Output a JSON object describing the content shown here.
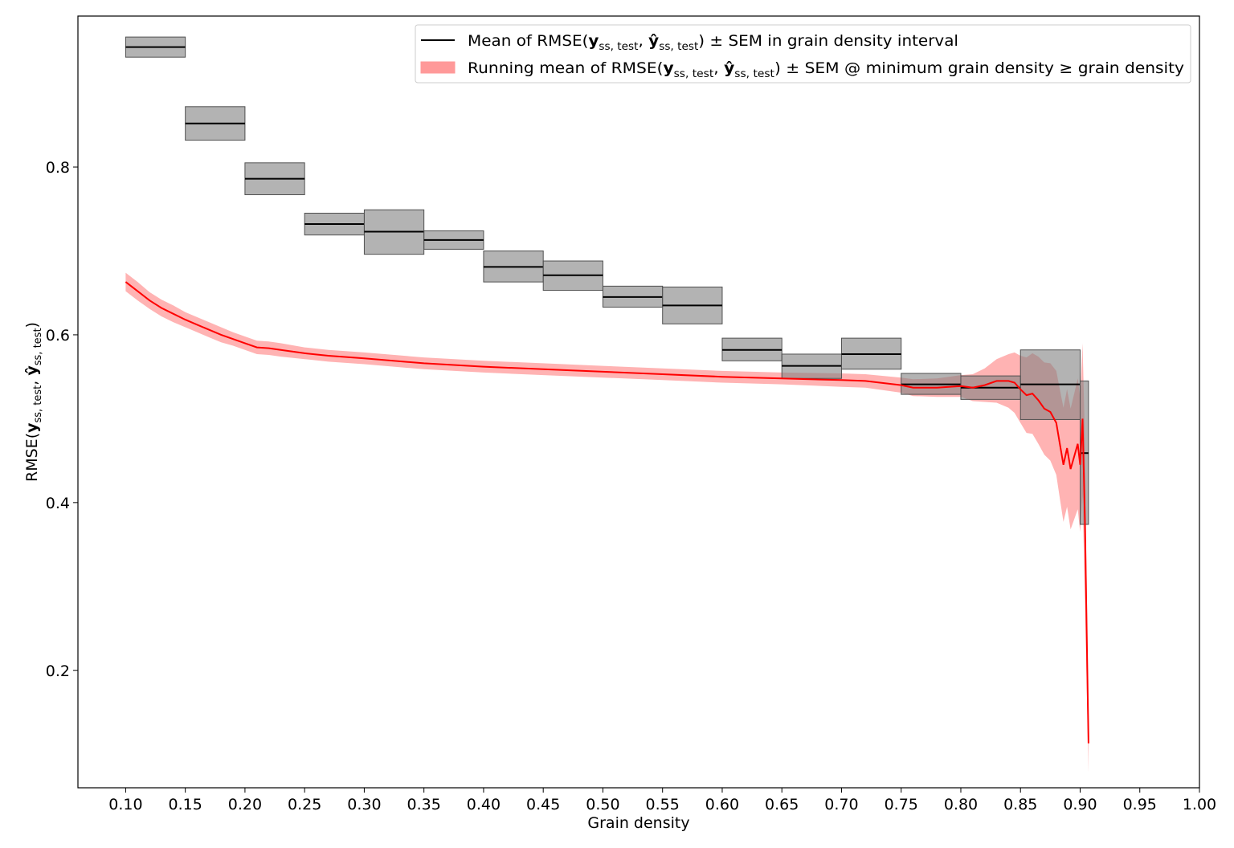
{
  "chart_data": {
    "type": "line",
    "xlabel": "Grain density",
    "ylabel": {
      "prefix": "RMSE(",
      "y": "y",
      "sub": "ss, test",
      "sep": ", ",
      "yhat": "ŷ",
      "suffix": ")"
    },
    "xlim": [
      0.06,
      1.0
    ],
    "ylim": [
      0.06,
      0.98
    ],
    "x_ticks": [
      0.1,
      0.15,
      0.2,
      0.25,
      0.3,
      0.35,
      0.4,
      0.45,
      0.5,
      0.55,
      0.6,
      0.65,
      0.7,
      0.75,
      0.8,
      0.85,
      0.9,
      0.95,
      1.0
    ],
    "x_tick_labels": [
      "0.10",
      "0.15",
      "0.20",
      "0.25",
      "0.30",
      "0.35",
      "0.40",
      "0.45",
      "0.50",
      "0.55",
      "0.60",
      "0.65",
      "0.70",
      "0.75",
      "0.80",
      "0.85",
      "0.90",
      "0.95",
      "1.00"
    ],
    "y_ticks": [
      0.2,
      0.4,
      0.6,
      0.8
    ],
    "y_tick_labels": [
      "0.2",
      "0.4",
      "0.6",
      "0.8"
    ],
    "grid": false,
    "legend_position": "top-right",
    "legend": [
      {
        "kind": "line",
        "color": "#000000",
        "text_before": "Mean of RMSE(",
        "y": "y",
        "sub": "ss, test",
        "sep": ", ",
        "yhat": "ŷ",
        "text_after": ") ± SEM in grain density interval"
      },
      {
        "kind": "patch",
        "color": "#ff9999",
        "text_before": "Running mean of RMSE(",
        "y": "y",
        "sub": "ss, test",
        "sep": ", ",
        "yhat": "ŷ",
        "text_after": ") ± SEM @ minimum grain density  ≥  grain density"
      }
    ],
    "interval_bins": [
      {
        "x0": 0.1,
        "x1": 0.15,
        "mean": 0.943,
        "lo": 0.931,
        "hi": 0.955
      },
      {
        "x0": 0.15,
        "x1": 0.2,
        "mean": 0.852,
        "lo": 0.832,
        "hi": 0.872
      },
      {
        "x0": 0.2,
        "x1": 0.25,
        "mean": 0.786,
        "lo": 0.767,
        "hi": 0.805
      },
      {
        "x0": 0.25,
        "x1": 0.3,
        "mean": 0.732,
        "lo": 0.719,
        "hi": 0.745
      },
      {
        "x0": 0.3,
        "x1": 0.35,
        "mean": 0.723,
        "lo": 0.696,
        "hi": 0.749
      },
      {
        "x0": 0.35,
        "x1": 0.4,
        "mean": 0.713,
        "lo": 0.702,
        "hi": 0.724
      },
      {
        "x0": 0.4,
        "x1": 0.45,
        "mean": 0.681,
        "lo": 0.663,
        "hi": 0.7
      },
      {
        "x0": 0.45,
        "x1": 0.5,
        "mean": 0.671,
        "lo": 0.653,
        "hi": 0.688
      },
      {
        "x0": 0.5,
        "x1": 0.55,
        "mean": 0.645,
        "lo": 0.633,
        "hi": 0.658
      },
      {
        "x0": 0.55,
        "x1": 0.6,
        "mean": 0.635,
        "lo": 0.613,
        "hi": 0.657
      },
      {
        "x0": 0.6,
        "x1": 0.65,
        "mean": 0.582,
        "lo": 0.569,
        "hi": 0.596
      },
      {
        "x0": 0.65,
        "x1": 0.7,
        "mean": 0.563,
        "lo": 0.548,
        "hi": 0.577
      },
      {
        "x0": 0.7,
        "x1": 0.75,
        "mean": 0.577,
        "lo": 0.559,
        "hi": 0.596
      },
      {
        "x0": 0.75,
        "x1": 0.8,
        "mean": 0.541,
        "lo": 0.529,
        "hi": 0.554
      },
      {
        "x0": 0.8,
        "x1": 0.85,
        "mean": 0.537,
        "lo": 0.523,
        "hi": 0.551
      },
      {
        "x0": 0.85,
        "x1": 0.9,
        "mean": 0.541,
        "lo": 0.499,
        "hi": 0.582
      },
      {
        "x0": 0.9,
        "x1": 0.907,
        "mean": 0.459,
        "lo": 0.374,
        "hi": 0.545
      }
    ],
    "running_mean": {
      "x": [
        0.1,
        0.11,
        0.12,
        0.13,
        0.14,
        0.15,
        0.16,
        0.17,
        0.18,
        0.19,
        0.2,
        0.21,
        0.22,
        0.23,
        0.25,
        0.27,
        0.3,
        0.35,
        0.4,
        0.45,
        0.5,
        0.55,
        0.6,
        0.65,
        0.7,
        0.72,
        0.75,
        0.76,
        0.78,
        0.8,
        0.81,
        0.82,
        0.83,
        0.84,
        0.845,
        0.85,
        0.855,
        0.86,
        0.865,
        0.87,
        0.875,
        0.88,
        0.883,
        0.886,
        0.889,
        0.892,
        0.895,
        0.898,
        0.9,
        0.902,
        0.904,
        0.906,
        0.907
      ],
      "mean": [
        0.663,
        0.652,
        0.641,
        0.632,
        0.625,
        0.618,
        0.612,
        0.606,
        0.6,
        0.595,
        0.59,
        0.585,
        0.584,
        0.582,
        0.578,
        0.575,
        0.572,
        0.566,
        0.562,
        0.559,
        0.556,
        0.553,
        0.55,
        0.548,
        0.546,
        0.545,
        0.54,
        0.537,
        0.537,
        0.539,
        0.537,
        0.54,
        0.545,
        0.545,
        0.543,
        0.535,
        0.528,
        0.53,
        0.522,
        0.512,
        0.508,
        0.495,
        0.47,
        0.445,
        0.465,
        0.44,
        0.455,
        0.47,
        0.445,
        0.5,
        0.38,
        0.2,
        0.113
      ],
      "sem": [
        0.011,
        0.011,
        0.01,
        0.01,
        0.01,
        0.009,
        0.009,
        0.009,
        0.009,
        0.008,
        0.008,
        0.008,
        0.008,
        0.008,
        0.007,
        0.007,
        0.007,
        0.007,
        0.007,
        0.007,
        0.007,
        0.007,
        0.007,
        0.007,
        0.008,
        0.008,
        0.009,
        0.01,
        0.011,
        0.013,
        0.016,
        0.02,
        0.026,
        0.032,
        0.036,
        0.04,
        0.045,
        0.048,
        0.052,
        0.055,
        0.058,
        0.062,
        0.065,
        0.068,
        0.07,
        0.072,
        0.075,
        0.078,
        0.08,
        0.09,
        0.095,
        0.05,
        0.035
      ]
    },
    "colors": {
      "interval_fill": "#808080",
      "interval_line": "#000000",
      "running_line": "#ff0000",
      "running_band": "#ff9999"
    }
  }
}
